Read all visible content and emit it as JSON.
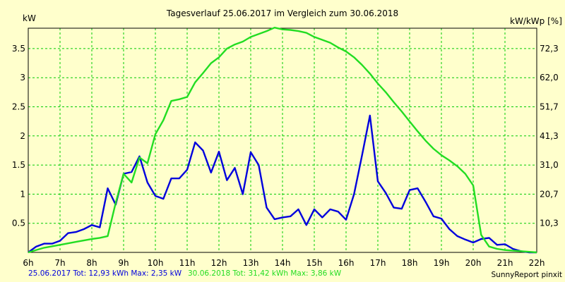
{
  "chart_data": {
    "type": "line",
    "title": "Tagesverlauf 25.06.2017 im Vergleich zum 30.06.2018",
    "ylabel_left": "kW",
    "ylabel_right": "kW/kWp [%]",
    "x_ticks": [
      "6h",
      "7h",
      "8h",
      "9h",
      "10h",
      "11h",
      "12h",
      "13h",
      "14h",
      "15h",
      "16h",
      "17h",
      "18h",
      "19h",
      "20h",
      "21h",
      "22h"
    ],
    "y_ticks_left": [
      "0.5",
      "1",
      "1.5",
      "2",
      "2.5",
      "3",
      "3.5"
    ],
    "y_ticks_right": [
      "10,3",
      "20,7",
      "31,0",
      "41,3",
      "51,7",
      "62,0",
      "72,3"
    ],
    "xlim": [
      6,
      22
    ],
    "ylim": [
      0,
      3.85
    ],
    "grid": true,
    "colors": {
      "background": "#ffffcc",
      "grid": "#00cc00",
      "axes": "#000000"
    },
    "series": [
      {
        "name": "25.06.2017",
        "color": "#0000dd",
        "x": [
          6.0,
          6.25,
          6.5,
          6.75,
          7.0,
          7.25,
          7.5,
          7.75,
          8.0,
          8.25,
          8.5,
          8.75,
          9.0,
          9.25,
          9.5,
          9.75,
          10.0,
          10.25,
          10.5,
          10.75,
          11.0,
          11.25,
          11.5,
          11.75,
          12.0,
          12.25,
          12.5,
          12.75,
          13.0,
          13.25,
          13.5,
          13.75,
          14.0,
          14.25,
          14.5,
          14.75,
          15.0,
          15.25,
          15.5,
          15.75,
          16.0,
          16.25,
          16.5,
          16.75,
          17.0,
          17.25,
          17.5,
          17.75,
          18.0,
          18.25,
          18.5,
          18.75,
          19.0,
          19.25,
          19.5,
          19.75,
          20.0,
          20.25,
          20.5,
          20.75,
          21.0,
          21.25,
          21.5,
          21.75,
          22.0
        ],
        "values": [
          0.0,
          0.1,
          0.15,
          0.15,
          0.2,
          0.33,
          0.35,
          0.4,
          0.47,
          0.43,
          1.1,
          0.82,
          1.35,
          1.38,
          1.65,
          1.2,
          0.97,
          0.92,
          1.27,
          1.27,
          1.42,
          1.89,
          1.75,
          1.37,
          1.73,
          1.24,
          1.45,
          1.0,
          1.72,
          1.5,
          0.77,
          0.57,
          0.6,
          0.62,
          0.74,
          0.47,
          0.74,
          0.6,
          0.74,
          0.7,
          0.56,
          1.0,
          1.66,
          2.35,
          1.22,
          1.02,
          0.77,
          0.75,
          1.07,
          1.1,
          0.87,
          0.62,
          0.58,
          0.4,
          0.28,
          0.22,
          0.17,
          0.23,
          0.25,
          0.13,
          0.14,
          0.06,
          0.02,
          0.0,
          0.0
        ]
      },
      {
        "name": "30.06.2018",
        "color": "#22dd22",
        "x": [
          6.0,
          6.5,
          7.0,
          7.5,
          8.0,
          8.25,
          8.5,
          8.75,
          9.0,
          9.25,
          9.5,
          9.75,
          10.0,
          10.25,
          10.5,
          10.75,
          11.0,
          11.25,
          11.5,
          11.75,
          12.0,
          12.25,
          12.5,
          12.75,
          13.0,
          13.25,
          13.5,
          13.75,
          14.0,
          14.25,
          14.5,
          14.75,
          15.0,
          15.25,
          15.5,
          15.75,
          16.0,
          16.25,
          16.5,
          16.75,
          17.0,
          17.25,
          17.5,
          17.75,
          18.0,
          18.25,
          18.5,
          18.75,
          19.0,
          19.25,
          19.5,
          19.75,
          20.0,
          20.25,
          20.5,
          20.75,
          21.0,
          21.5,
          22.0
        ],
        "values": [
          0.0,
          0.08,
          0.13,
          0.18,
          0.23,
          0.25,
          0.28,
          0.85,
          1.35,
          1.2,
          1.63,
          1.53,
          2.03,
          2.27,
          2.6,
          2.63,
          2.67,
          2.92,
          3.08,
          3.25,
          3.35,
          3.5,
          3.57,
          3.62,
          3.7,
          3.75,
          3.8,
          3.86,
          3.83,
          3.82,
          3.8,
          3.77,
          3.7,
          3.65,
          3.6,
          3.52,
          3.45,
          3.35,
          3.22,
          3.07,
          2.9,
          2.75,
          2.58,
          2.42,
          2.25,
          2.08,
          1.92,
          1.78,
          1.67,
          1.58,
          1.48,
          1.35,
          1.15,
          0.3,
          0.1,
          0.06,
          0.04,
          0.02,
          0.0
        ]
      }
    ]
  },
  "footer": {
    "summary_2017": "25.06.2017 Tot: 12,93 kWh Max: 2,35 kW",
    "summary_2018": "30.06.2018 Tot: 31,42 kWh Max: 3,86 kW",
    "brand": "SunnyReport pinxit"
  }
}
